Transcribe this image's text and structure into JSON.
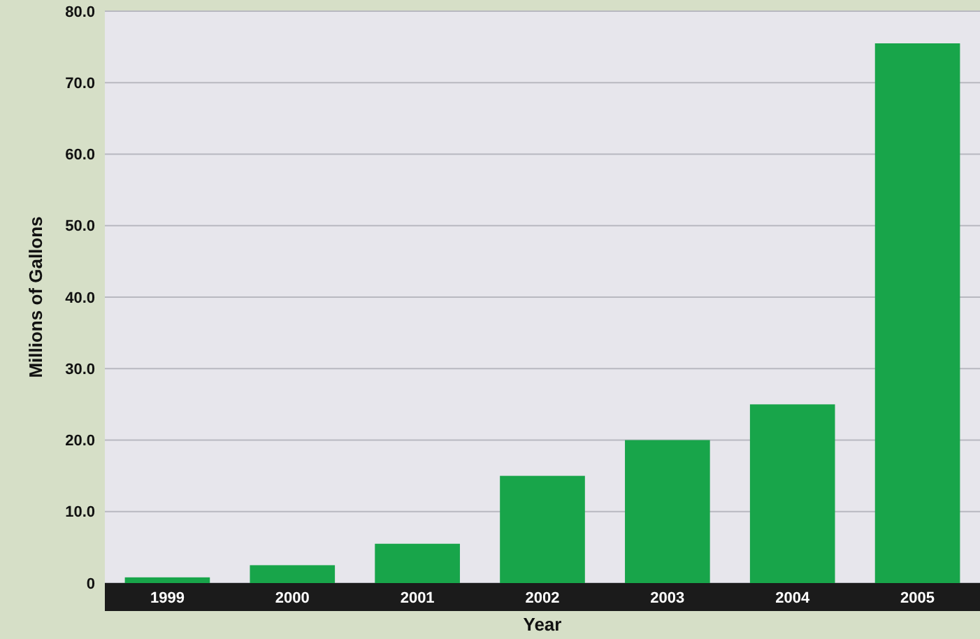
{
  "chart_data": {
    "type": "bar",
    "xlabel": "Year",
    "ylabel": "Millions of Gallons",
    "categories": [
      "1999",
      "2000",
      "2001",
      "2002",
      "2003",
      "2004",
      "2005"
    ],
    "values": [
      0.8,
      2.5,
      5.5,
      15,
      20,
      25,
      75.5
    ],
    "color": "#18a54a",
    "ylim": [
      0,
      80
    ],
    "yticks": [
      0,
      {
        "value": 10,
        "label": "10.0"
      },
      {
        "value": 20,
        "label": "20.0"
      },
      {
        "value": 30,
        "label": "30.0"
      },
      {
        "value": 40,
        "label": "40.0"
      },
      {
        "value": 50,
        "label": "50.0"
      },
      {
        "value": 60,
        "label": "60.0"
      },
      {
        "value": 70,
        "label": "70.0"
      },
      {
        "value": 80,
        "label": "80.0"
      }
    ],
    "grid": "y"
  }
}
